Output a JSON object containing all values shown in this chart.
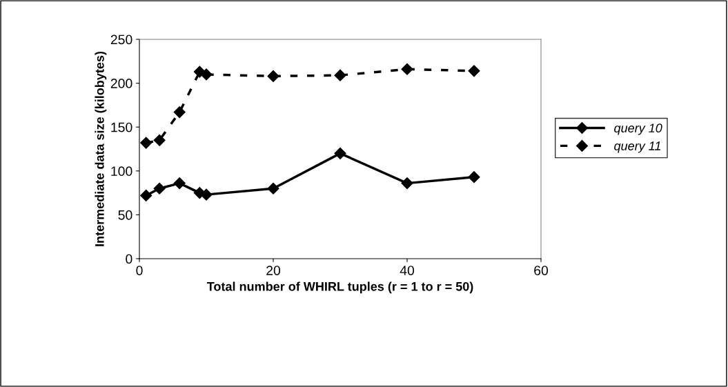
{
  "chart_data": {
    "type": "line",
    "xlabel": "Total number of WHIRL tuples (r = 1 to r = 50)",
    "ylabel": "Intermediate data size (kilobytes)",
    "x": [
      1,
      3,
      6,
      9,
      10,
      20,
      30,
      40,
      50
    ],
    "series": [
      {
        "name": "query 10",
        "color": "#000000",
        "line_style": "solid",
        "values": [
          72,
          80,
          86,
          75,
          73,
          80,
          120,
          86,
          93
        ]
      },
      {
        "name": "query 11",
        "color": "#000000",
        "line_style": "dashed",
        "values": [
          132,
          135,
          167,
          213,
          210,
          208,
          209,
          216,
          214
        ]
      }
    ],
    "xlim": [
      0,
      60
    ],
    "xticks": [
      0,
      20,
      40,
      60
    ],
    "ylim": [
      0,
      250
    ],
    "yticks": [
      0,
      50,
      100,
      150,
      200,
      250
    ],
    "marker": "diamond",
    "grid": false,
    "legend": "right"
  }
}
